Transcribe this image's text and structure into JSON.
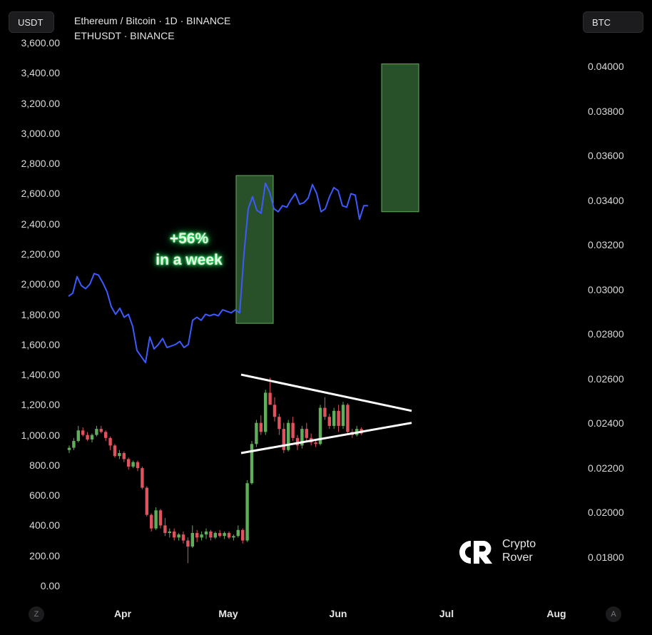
{
  "header": {
    "left_unit": "USDT",
    "right_unit": "BTC",
    "line1": "Ethereum / Bitcoin · 1D · BINANCE",
    "line2": "ETHUSDT · BINANCE"
  },
  "footer": {
    "left_button": "Z",
    "right_button": "A"
  },
  "annotation": {
    "line1": "+56%",
    "line2": "in a week"
  },
  "logo": {
    "line1": "Crypto",
    "line2": "Rover"
  },
  "colors": {
    "eth_btc_line": "#3d5afe",
    "candle_up": "#5fae5a",
    "candle_down": "#e0525e",
    "box_fill": "#2e5a2e",
    "box_stroke": "#5fae5a",
    "triangle": "#ffffff"
  },
  "chart_data": {
    "type": "line",
    "title": "Ethereum / Bitcoin · 1D · BINANCE",
    "x_ticks": [
      "Apr",
      "May",
      "Jun",
      "Jul",
      "Aug"
    ],
    "left_axis": {
      "unit": "USDT",
      "range": [
        0,
        3600
      ],
      "ticks": [
        "0.00",
        "200.00",
        "400.00",
        "600.00",
        "800.00",
        "1,000.00",
        "1,200.00",
        "1,400.00",
        "1,600.00",
        "1,800.00",
        "2,000.00",
        "2,200.00",
        "2,400.00",
        "2,600.00",
        "2,800.00",
        "3,000.00",
        "3,200.00",
        "3,400.00",
        "3,600.00"
      ]
    },
    "right_axis": {
      "unit": "BTC",
      "range": [
        0.0175,
        0.0405
      ],
      "ticks": [
        "0.01800",
        "0.02000",
        "0.02200",
        "0.02400",
        "0.02600",
        "0.02800",
        "0.03000",
        "0.03200",
        "0.03400",
        "0.03600",
        "0.03800",
        "0.04000"
      ]
    },
    "series": [
      {
        "name": "Ethereum / Bitcoin",
        "axis": "left",
        "values": [
          1920,
          1940,
          2050,
          1990,
          1970,
          2000,
          2070,
          2060,
          2010,
          1950,
          1850,
          1800,
          1840,
          1780,
          1800,
          1720,
          1560,
          1520,
          1480,
          1650,
          1570,
          1600,
          1640,
          1580,
          1590,
          1600,
          1620,
          1580,
          1600,
          1760,
          1780,
          1760,
          1800,
          1790,
          1800,
          1790,
          1830,
          1820,
          1810,
          1830,
          1810,
          2200,
          2500,
          2580,
          2490,
          2470,
          2670,
          2610,
          2500,
          2480,
          2520,
          2510,
          2560,
          2600,
          2530,
          2540,
          2570,
          2660,
          2600,
          2480,
          2500,
          2580,
          2640,
          2620,
          2520,
          2510,
          2600,
          2590,
          2430,
          2520,
          2520
        ]
      },
      {
        "name": "ETHUSDT",
        "axis": "left",
        "type": "candlestick",
        "ohlc": [
          [
            900,
            930,
            880,
            915
          ],
          [
            915,
            980,
            900,
            960
          ],
          [
            960,
            1060,
            950,
            1030
          ],
          [
            1030,
            1050,
            990,
            1000
          ],
          [
            1000,
            1020,
            960,
            970
          ],
          [
            970,
            1010,
            950,
            1000
          ],
          [
            1000,
            1060,
            990,
            1040
          ],
          [
            1040,
            1060,
            1010,
            1020
          ],
          [
            1020,
            1030,
            960,
            980
          ],
          [
            980,
            990,
            900,
            930
          ],
          [
            930,
            940,
            850,
            860
          ],
          [
            860,
            900,
            840,
            880
          ],
          [
            880,
            890,
            820,
            840
          ],
          [
            840,
            850,
            770,
            790
          ],
          [
            790,
            830,
            780,
            820
          ],
          [
            820,
            830,
            760,
            780
          ],
          [
            780,
            790,
            640,
            650
          ],
          [
            650,
            660,
            460,
            470
          ],
          [
            470,
            480,
            360,
            380
          ],
          [
            380,
            520,
            370,
            500
          ],
          [
            500,
            510,
            380,
            400
          ],
          [
            400,
            450,
            330,
            350
          ],
          [
            350,
            380,
            320,
            360
          ],
          [
            360,
            380,
            300,
            320
          ],
          [
            320,
            350,
            300,
            340
          ],
          [
            340,
            360,
            280,
            300
          ],
          [
            300,
            320,
            150,
            260
          ],
          [
            260,
            400,
            250,
            350
          ],
          [
            350,
            370,
            290,
            320
          ],
          [
            320,
            360,
            300,
            340
          ],
          [
            340,
            380,
            310,
            360
          ],
          [
            360,
            370,
            300,
            320
          ],
          [
            320,
            360,
            310,
            350
          ],
          [
            350,
            370,
            320,
            330
          ],
          [
            330,
            360,
            310,
            350
          ],
          [
            350,
            360,
            310,
            320
          ],
          [
            320,
            340,
            300,
            330
          ],
          [
            330,
            400,
            320,
            370
          ],
          [
            370,
            380,
            280,
            300
          ],
          [
            300,
            700,
            290,
            680
          ],
          [
            680,
            960,
            670,
            940
          ],
          [
            940,
            1100,
            920,
            1080
          ],
          [
            1080,
            1130,
            1000,
            1020
          ],
          [
            1020,
            1300,
            1000,
            1280
          ],
          [
            1280,
            1380,
            1200,
            1200
          ],
          [
            1200,
            1250,
            1090,
            1120
          ],
          [
            1120,
            1140,
            1000,
            1040
          ],
          [
            1040,
            1080,
            880,
            900
          ],
          [
            900,
            1100,
            890,
            1080
          ],
          [
            1080,
            1120,
            960,
            980
          ],
          [
            980,
            1000,
            900,
            930
          ],
          [
            930,
            1060,
            910,
            1040
          ],
          [
            1040,
            1080,
            960,
            980
          ],
          [
            980,
            1010,
            930,
            950
          ],
          [
            950,
            970,
            920,
            940
          ],
          [
            940,
            1200,
            930,
            1180
          ],
          [
            1180,
            1250,
            1100,
            1120
          ],
          [
            1120,
            1140,
            1040,
            1060
          ],
          [
            1060,
            1180,
            1040,
            1160
          ],
          [
            1160,
            1200,
            1020,
            1060
          ],
          [
            1060,
            1220,
            1040,
            1200
          ],
          [
            1200,
            1210,
            1000,
            1020
          ],
          [
            1020,
            1040,
            980,
            1000
          ],
          [
            1000,
            1060,
            990,
            1040
          ],
          [
            1040,
            1050,
            1000,
            1010
          ]
        ]
      }
    ],
    "boxes": [
      {
        "x_start_index": 40,
        "x_end_index": 47,
        "range": [
          1740,
          2720
        ]
      },
      {
        "x_start_index": 74,
        "x_end_index": 81,
        "range": [
          2480,
          3460
        ]
      }
    ],
    "triangle": {
      "upper": [
        [
          42,
          1400
        ],
        [
          83,
          1160
        ]
      ],
      "lower": [
        [
          42,
          880
        ],
        [
          83,
          1080
        ]
      ]
    },
    "grid": false,
    "legend": "none"
  }
}
